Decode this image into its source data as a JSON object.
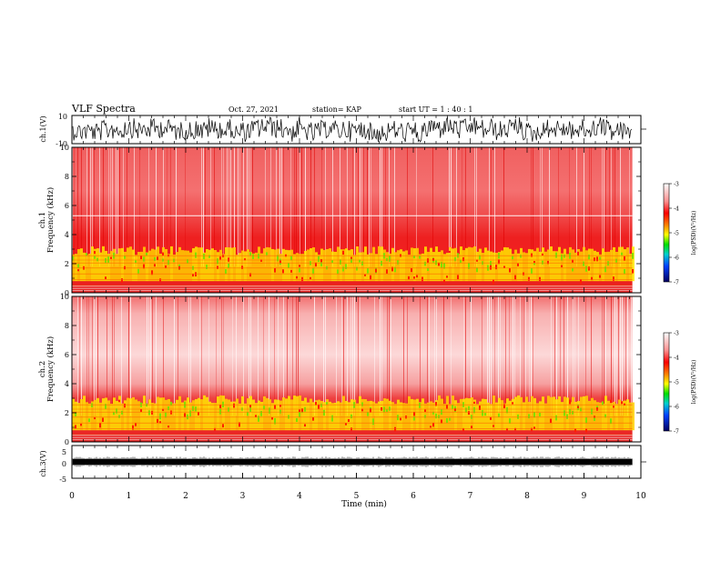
{
  "header": {
    "title": "VLF Spectra",
    "date": "Oct. 27, 2021",
    "station": "station= KAP",
    "start_ut": "start  UT =   1 : 40 : 1"
  },
  "chart_data": [
    {
      "type": "line",
      "name": "ch1-waveform",
      "ylabel": "ch.1(V)",
      "ylim": [
        -10,
        10
      ],
      "yticks": [
        "10",
        "-10"
      ],
      "xlim": [
        0,
        10
      ],
      "data_xmax": 9.85
    },
    {
      "type": "heatmap",
      "name": "ch1-spectrogram",
      "ylabel": "ch.1\nFrequency (kHz)",
      "ylabel_lines": [
        "ch.1",
        "Frequency (kHz)"
      ],
      "ylim": [
        0,
        10
      ],
      "yticks": [
        "0",
        "2",
        "4",
        "6",
        "8",
        "10"
      ],
      "xlim": [
        0,
        10
      ],
      "colorbar": {
        "label": "log(PSD)(V²/Hz)",
        "range": [
          -7,
          -3
        ],
        "ticks": [
          "-3",
          "-4",
          "-5",
          "-6",
          "-7"
        ]
      }
    },
    {
      "type": "heatmap",
      "name": "ch2-spectrogram",
      "ylabel_lines": [
        "ch.2",
        "Frequency (kHz)"
      ],
      "ylim": [
        0,
        10
      ],
      "yticks": [
        "0",
        "2",
        "4",
        "6",
        "8",
        "10"
      ],
      "xlim": [
        0,
        10
      ],
      "colorbar": {
        "label": "log(PSD)(V²/Hz)",
        "range": [
          -7,
          -3
        ],
        "ticks": [
          "-3",
          "-4",
          "-5",
          "-6",
          "-7"
        ]
      }
    },
    {
      "type": "line",
      "name": "ch3-waveform",
      "ylabel": "ch.3(V)",
      "ylim": [
        -5,
        5
      ],
      "yticks": [
        "5",
        "0",
        "-5"
      ],
      "xlim": [
        0,
        10
      ],
      "xticks": [
        "0",
        "1",
        "2",
        "3",
        "4",
        "5",
        "6",
        "7",
        "8",
        "9",
        "10"
      ],
      "xlabel": "Time (min)"
    }
  ],
  "colors": {
    "spec_background": "#ffffff",
    "high_psd": "#e00000",
    "mid_psd": "#ff4040",
    "band_yellow": "#ffe800",
    "band_green": "#90e000",
    "line": "#000000"
  }
}
